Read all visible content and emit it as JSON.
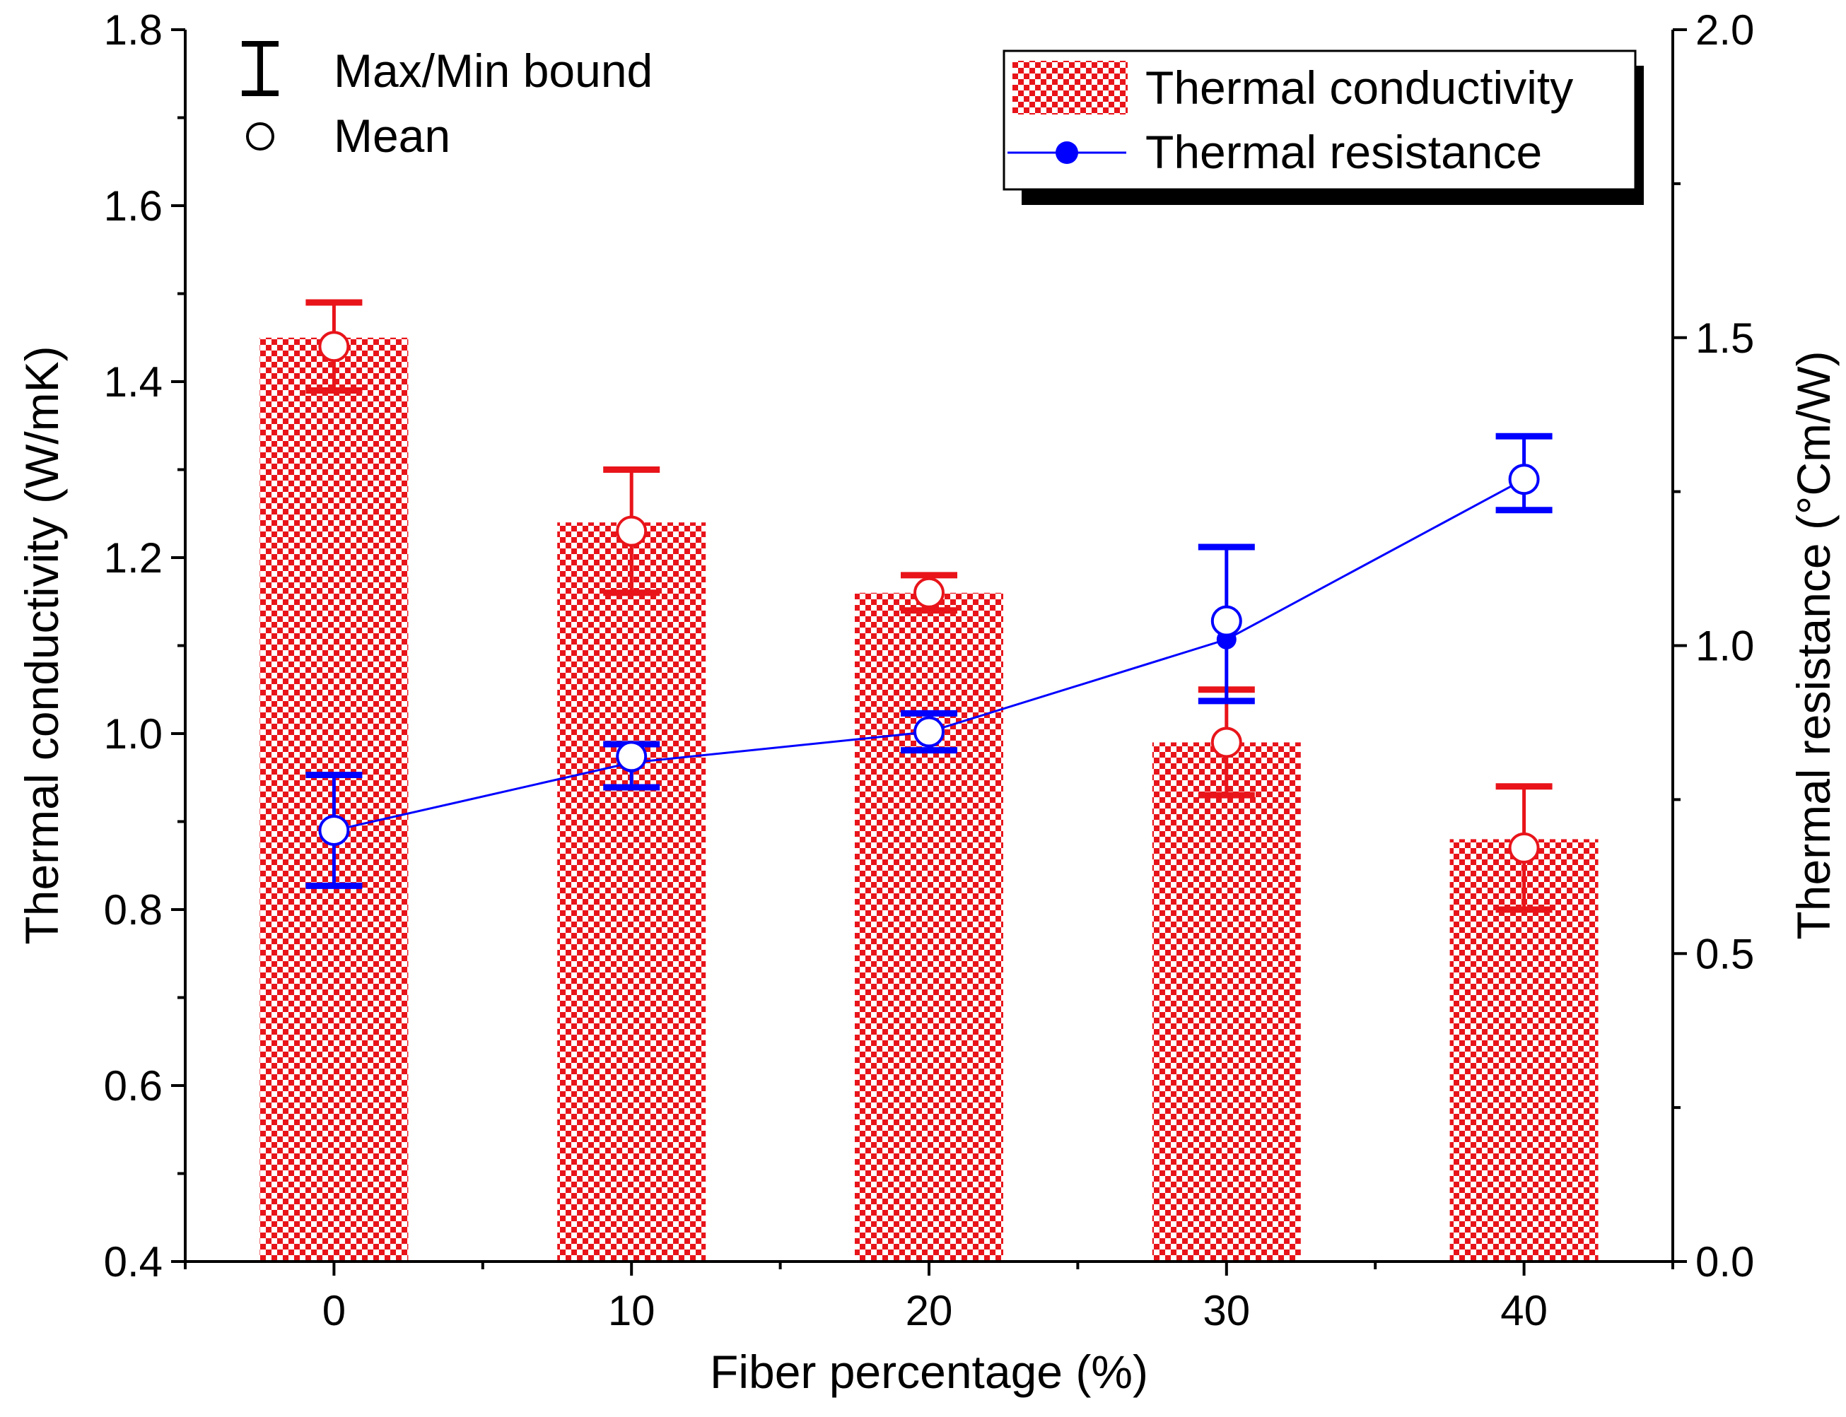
{
  "chart_data": {
    "type": "bar+line",
    "xlabel": "Fiber percentage (%)",
    "ylabel_left": "Thermal conductivity (W/mK)",
    "ylabel_right": "Thermal resistance (°Cm/W)",
    "categories": [
      "0",
      "10",
      "20",
      "30",
      "40"
    ],
    "x": [
      0,
      10,
      20,
      30,
      40
    ],
    "xlim": [
      -5,
      45
    ],
    "ylim_left": [
      0.4,
      1.8
    ],
    "ylim_right": [
      0.0,
      2.0
    ],
    "yticks_left": [
      "0.4",
      "0.6",
      "0.8",
      "1.0",
      "1.2",
      "1.4",
      "1.6",
      "1.8"
    ],
    "yticks_right": [
      "0.0",
      "0.5",
      "1.0",
      "1.5",
      "2.0"
    ],
    "series": [
      {
        "name": "Thermal conductivity",
        "kind": "bar",
        "axis": "left",
        "color": "#e8141a",
        "values": [
          1.45,
          1.24,
          1.16,
          0.99,
          0.88
        ],
        "mean": [
          1.44,
          1.23,
          1.16,
          0.99,
          0.87
        ],
        "max": [
          1.49,
          1.3,
          1.18,
          1.05,
          0.94
        ],
        "min": [
          1.39,
          1.16,
          1.14,
          0.93,
          0.8
        ]
      },
      {
        "name": "Thermal resistance",
        "kind": "line",
        "axis": "right",
        "color": "#0000ff",
        "values": [
          0.7,
          0.81,
          0.86,
          1.01,
          1.27
        ],
        "mean": [
          0.7,
          0.82,
          0.86,
          1.04,
          1.27
        ],
        "max": [
          0.79,
          0.84,
          0.89,
          1.16,
          1.34
        ],
        "min": [
          0.61,
          0.77,
          0.83,
          0.91,
          1.22
        ]
      }
    ],
    "legend_left": {
      "errorbar_label": "Max/Min bound",
      "mean_label": "Mean",
      "position": "top-left"
    },
    "legend_right": {
      "bar_label": "Thermal conductivity",
      "line_label": "Thermal resistance",
      "position": "top-right"
    }
  }
}
